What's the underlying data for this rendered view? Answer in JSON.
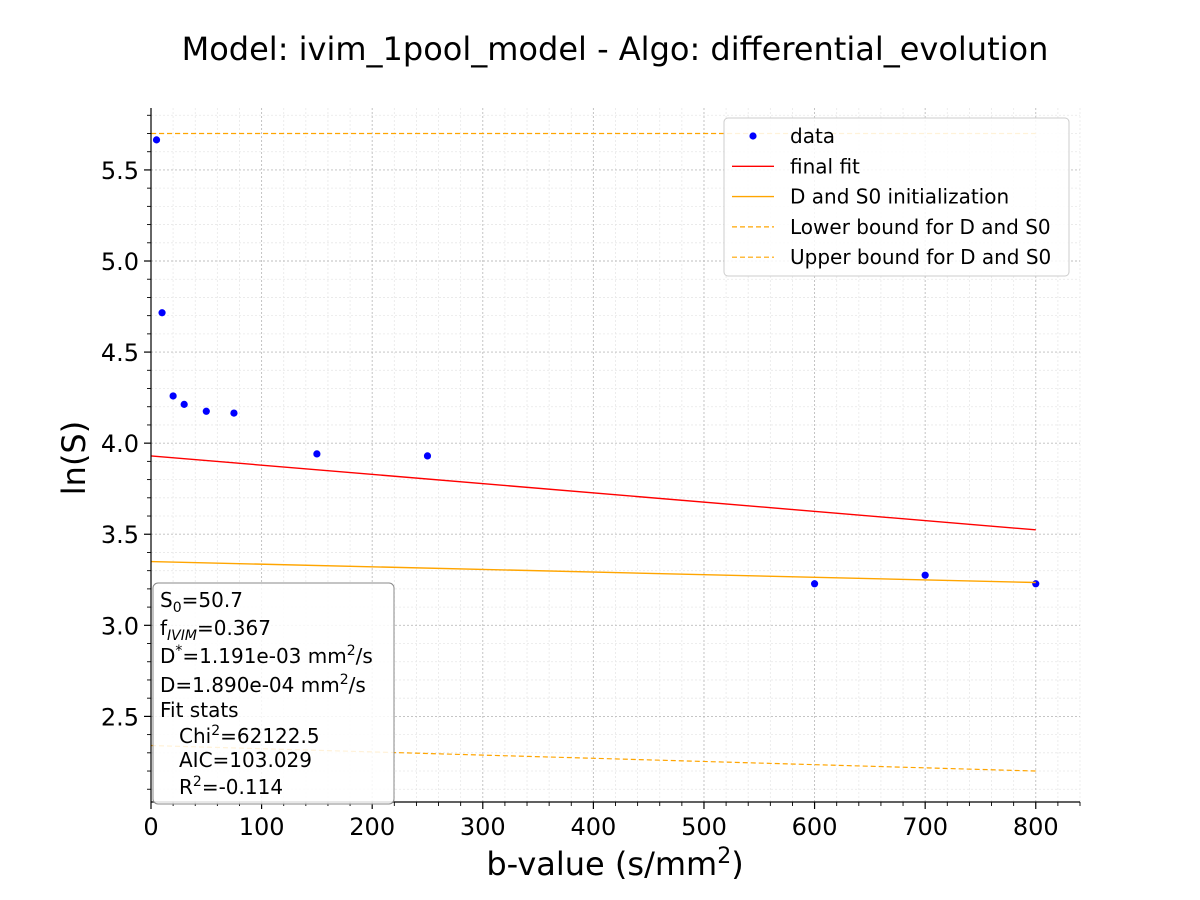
{
  "chart_data": {
    "type": "scatter",
    "title": "Model: ivim_1pool_model - Algo: differential_evolution",
    "xlabel": "b-value (s/mm²)",
    "ylabel": "ln(S)",
    "xlim": [
      0,
      840
    ],
    "ylim": [
      2.03,
      5.84
    ],
    "xticks": [
      0,
      100,
      200,
      300,
      400,
      500,
      600,
      700,
      800
    ],
    "yticks": [
      2.5,
      3.0,
      3.5,
      4.0,
      4.5,
      5.0,
      5.5
    ],
    "grid": true,
    "minor_grid": true,
    "legend_position": "top-right",
    "series": [
      {
        "name": "data",
        "kind": "points",
        "color": "#0000ff",
        "x": [
          5,
          10,
          20,
          30,
          50,
          75,
          150,
          250,
          600,
          700,
          800
        ],
        "y": [
          5.665,
          4.716,
          4.259,
          4.213,
          4.175,
          4.165,
          3.941,
          3.93,
          3.228,
          3.275,
          3.228
        ]
      },
      {
        "name": "final fit",
        "kind": "line",
        "color": "#ff0000",
        "dash": "solid",
        "x": [
          0,
          800
        ],
        "y": [
          3.93,
          3.524
        ]
      },
      {
        "name": "D and S0 initialization",
        "kind": "line",
        "color": "#ffa500",
        "dash": "solid",
        "x": [
          0,
          800
        ],
        "y": [
          3.35,
          3.235
        ]
      },
      {
        "name": "Lower bound for D and S0",
        "kind": "line",
        "color": "#ffa500",
        "dash": "dashed",
        "x": [
          0,
          800
        ],
        "y": [
          2.34,
          2.2
        ]
      },
      {
        "name": "Upper bound for D and S0",
        "kind": "line",
        "color": "#ffa500",
        "dash": "dashed",
        "x": [
          0,
          800
        ],
        "y": [
          5.7,
          5.7
        ]
      }
    ],
    "stats_box": {
      "lines": [
        {
          "main": "S",
          "sub": "0",
          "rest": "=50.7",
          "indent": false
        },
        {
          "main": "f",
          "sub": "IVIM",
          "rest": "=0.367",
          "indent": false
        },
        {
          "main": "D",
          "sup": "*",
          "rest": "=1.191e-03 mm",
          "sup2": "2",
          "rest2": "/s",
          "indent": false
        },
        {
          "main": "D=1.890e-04 mm",
          "sup": "2",
          "rest": "/s",
          "indent": false
        },
        {
          "main": "Fit stats",
          "indent": false
        },
        {
          "main": "Chi",
          "sup": "2",
          "rest": "=62122.5",
          "indent": true
        },
        {
          "main": "AIC=103.029",
          "indent": true
        },
        {
          "main": "R",
          "sup": "2",
          "rest": "=-0.114",
          "indent": true
        }
      ]
    }
  }
}
